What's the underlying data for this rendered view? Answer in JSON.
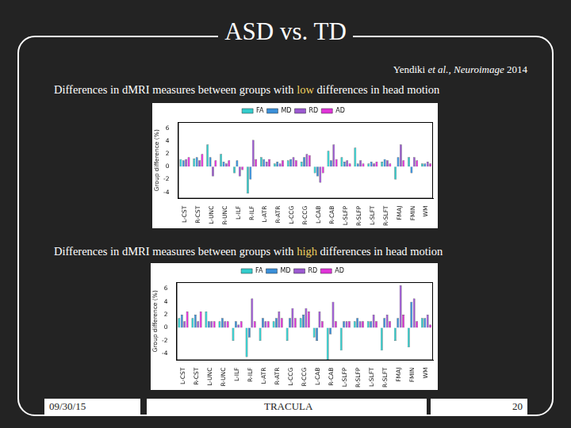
{
  "slide": {
    "title": "ASD vs. TD",
    "citation": {
      "before": "Yendiki ",
      "italic": "et al., Neuroimage",
      "after": " 2014"
    },
    "captions": [
      {
        "before": "Differences in dMRI measures between groups with ",
        "highlight": "low",
        "after": " differences in head motion"
      },
      {
        "before": "Differences in dMRI measures between groups with ",
        "highlight": "high",
        "after": " differences in head motion"
      }
    ],
    "footer": {
      "date": "09/30/15",
      "name": "TRACULA",
      "page": "20"
    }
  },
  "chart_data": [
    {
      "type": "bar",
      "y_label": "Group difference (%)",
      "categories": [
        "L-CST",
        "R-CST",
        "L-UNC",
        "R-UNC",
        "L-ILF",
        "R-ILF",
        "L-ATR",
        "R-ATR",
        "L-CCG",
        "R-CCG",
        "L-CAB",
        "R-CAB",
        "L-SLFP",
        "R-SLFP",
        "L-SLFT",
        "R-SLFT",
        "FMAJ",
        "FMIN",
        "WM"
      ],
      "series": [
        {
          "name": "FA",
          "color": "#33cccc",
          "values": [
            1.2,
            1.3,
            3.5,
            2.0,
            -1.0,
            -4.2,
            1.5,
            0.5,
            1.0,
            0.8,
            -1.0,
            2.5,
            1.5,
            3.0,
            0.5,
            0.8,
            -2.0,
            1.5,
            0.5
          ]
        },
        {
          "name": "MD",
          "color": "#3a8fd8",
          "values": [
            1.0,
            1.5,
            1.5,
            0.8,
            1.0,
            -2.0,
            1.2,
            0.8,
            1.2,
            1.5,
            -1.5,
            1.0,
            0.8,
            0.5,
            0.8,
            1.2,
            1.5,
            -1.0,
            0.5
          ]
        },
        {
          "name": "RD",
          "color": "#9b59d0",
          "values": [
            1.2,
            1.0,
            -1.5,
            0.5,
            -1.5,
            4.2,
            0.8,
            0.5,
            1.5,
            2.0,
            -2.5,
            3.5,
            1.0,
            1.0,
            0.5,
            1.0,
            3.5,
            1.5,
            0.8
          ]
        },
        {
          "name": "AD",
          "color": "#e033d8",
          "values": [
            1.5,
            2.0,
            1.0,
            1.0,
            -0.5,
            1.2,
            1.2,
            1.0,
            1.0,
            1.8,
            -1.0,
            1.2,
            0.5,
            0.5,
            0.8,
            0.5,
            1.0,
            1.0,
            0.5
          ]
        }
      ],
      "ylim": [
        -5,
        7
      ],
      "yticks": [
        -4,
        -2,
        0,
        2,
        4,
        6
      ],
      "grid": false,
      "legend": "top"
    },
    {
      "type": "bar",
      "y_label": "Group difference (%)",
      "categories": [
        "L-CST",
        "R-CST",
        "L-UNC",
        "R-UNC",
        "L-ILF",
        "R-ILF",
        "L-ATR",
        "R-ATR",
        "L-CCG",
        "R-CCG",
        "L-CAB",
        "R-CAB",
        "L-SLFP",
        "R-SLFP",
        "L-SLFT",
        "R-SLFT",
        "FMAJ",
        "FMIN",
        "WM"
      ],
      "series": [
        {
          "name": "FA",
          "color": "#33cccc",
          "values": [
            1.5,
            1.5,
            2.5,
            1.0,
            -2.0,
            -4.5,
            -2.0,
            1.0,
            -2.0,
            1.5,
            -1.5,
            -5.0,
            -3.5,
            1.0,
            1.0,
            -3.5,
            -2.0,
            -3.0,
            1.5
          ]
        },
        {
          "name": "MD",
          "color": "#3a8fd8",
          "values": [
            2.0,
            2.0,
            1.0,
            1.5,
            1.0,
            -1.5,
            1.5,
            1.5,
            1.5,
            2.0,
            -2.0,
            -1.0,
            1.0,
            1.5,
            1.0,
            1.5,
            1.5,
            4.0,
            1.5
          ]
        },
        {
          "name": "RD",
          "color": "#9b59d0",
          "values": [
            1.0,
            1.0,
            1.0,
            1.0,
            0.5,
            4.5,
            1.0,
            2.5,
            3.0,
            3.0,
            2.5,
            4.0,
            1.0,
            1.0,
            2.0,
            2.0,
            6.5,
            4.5,
            2.0
          ]
        },
        {
          "name": "AD",
          "color": "#e033d8",
          "values": [
            2.5,
            2.5,
            1.0,
            1.0,
            1.0,
            1.0,
            1.0,
            1.5,
            1.5,
            2.5,
            1.0,
            1.0,
            1.0,
            1.0,
            1.0,
            1.0,
            2.0,
            1.0,
            0.5
          ]
        }
      ],
      "ylim": [
        -5,
        7
      ],
      "yticks": [
        -4,
        -2,
        0,
        2,
        4,
        6
      ],
      "grid": false,
      "legend": "top"
    }
  ]
}
